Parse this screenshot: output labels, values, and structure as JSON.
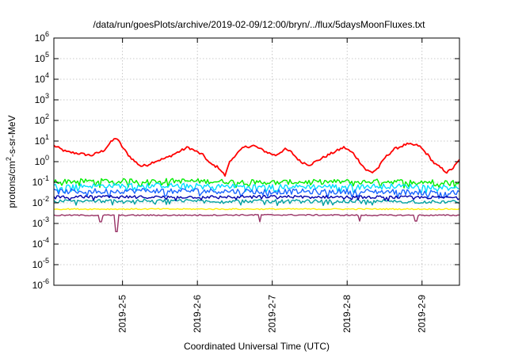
{
  "chart_data": {
    "type": "line",
    "title": "/data/run/goesPlots/archive/2019-02-09/12:00/bryn/../flux/5daysMoonFluxes.txt",
    "xlabel": "Coordinated Universal Time (UTC)",
    "ylabel": "protons/cm2-s-sr-MeV",
    "ylabel_parts": {
      "pre": "protons/cm",
      "sup": "2",
      "post": "-s-sr-MeV"
    },
    "y_scale": "log",
    "xlim": [
      "2019-02-04T02:00",
      "2019-02-09T12:00"
    ],
    "ylim": [
      1e-06,
      1000000.0
    ],
    "grid": true,
    "x_ticks": [
      {
        "date": "2019-02-05T00:00",
        "label": "2019-2-5"
      },
      {
        "date": "2019-02-06T00:00",
        "label": "2019-2-6"
      },
      {
        "date": "2019-02-07T00:00",
        "label": "2019-2-7"
      },
      {
        "date": "2019-02-08T00:00",
        "label": "2019-2-8"
      },
      {
        "date": "2019-02-09T00:00",
        "label": "2019-2-9"
      }
    ],
    "y_ticks": [
      {
        "value": 1e-06,
        "base": "10",
        "exp": "-6"
      },
      {
        "value": 1e-05,
        "base": "10",
        "exp": "-5"
      },
      {
        "value": 0.0001,
        "base": "10",
        "exp": "-4"
      },
      {
        "value": 0.001,
        "base": "10",
        "exp": "-3"
      },
      {
        "value": 0.01,
        "base": "10",
        "exp": "-2"
      },
      {
        "value": 0.1,
        "base": "10",
        "exp": "-1"
      },
      {
        "value": 1,
        "base": "10",
        "exp": "0"
      },
      {
        "value": 10,
        "base": "10",
        "exp": "1"
      },
      {
        "value": 100,
        "base": "10",
        "exp": "2"
      },
      {
        "value": 1000,
        "base": "10",
        "exp": "3"
      },
      {
        "value": 10000,
        "base": "10",
        "exp": "4"
      },
      {
        "value": 100000,
        "base": "10",
        "exp": "5"
      },
      {
        "value": 1000000,
        "base": "10",
        "exp": "6"
      }
    ],
    "series": [
      {
        "color": "#ff0000",
        "points": [
          [
            "2019-02-04T02:00",
            6.0
          ],
          [
            "2019-02-04T06:00",
            3.0
          ],
          [
            "2019-02-04T10:00",
            2.5
          ],
          [
            "2019-02-04T14:00",
            2.0
          ],
          [
            "2019-02-04T18:00",
            3.5
          ],
          [
            "2019-02-04T20:00",
            8.0
          ],
          [
            "2019-02-04T22:00",
            15.0
          ],
          [
            "2019-02-05T00:00",
            5.0
          ],
          [
            "2019-02-05T02:00",
            2.0
          ],
          [
            "2019-02-05T04:00",
            1.0
          ],
          [
            "2019-02-05T06:00",
            0.6
          ],
          [
            "2019-02-05T08:00",
            0.7
          ],
          [
            "2019-02-05T10:00",
            1.0
          ],
          [
            "2019-02-05T14:00",
            1.5
          ],
          [
            "2019-02-05T18:00",
            3.0
          ],
          [
            "2019-02-05T21:00",
            5.0
          ],
          [
            "2019-02-05T23:00",
            3.5
          ],
          [
            "2019-02-06T02:00",
            2.0
          ],
          [
            "2019-02-06T04:00",
            0.8
          ],
          [
            "2019-02-06T07:00",
            0.5
          ],
          [
            "2019-02-06T08:00",
            0.3
          ],
          [
            "2019-02-06T09:00",
            0.2
          ],
          [
            "2019-02-06T10:00",
            0.8
          ],
          [
            "2019-02-06T12:00",
            2.0
          ],
          [
            "2019-02-06T15:00",
            5.0
          ],
          [
            "2019-02-06T18:00",
            6.0
          ],
          [
            "2019-02-06T22:00",
            3.0
          ],
          [
            "2019-02-07T01:00",
            2.0
          ],
          [
            "2019-02-07T04:00",
            4.0
          ],
          [
            "2019-02-07T06:00",
            3.0
          ],
          [
            "2019-02-07T09:00",
            1.0
          ],
          [
            "2019-02-07T12:00",
            0.7
          ],
          [
            "2019-02-07T16:00",
            1.5
          ],
          [
            "2019-02-07T20:00",
            3.0
          ],
          [
            "2019-02-07T23:00",
            5.0
          ],
          [
            "2019-02-08T02:00",
            2.5
          ],
          [
            "2019-02-08T04:00",
            1.0
          ],
          [
            "2019-02-08T06:00",
            0.4
          ],
          [
            "2019-02-08T08:00",
            0.3
          ],
          [
            "2019-02-08T10:00",
            0.5
          ],
          [
            "2019-02-08T12:00",
            1.5
          ],
          [
            "2019-02-08T15:00",
            4.0
          ],
          [
            "2019-02-08T19:00",
            7.0
          ],
          [
            "2019-02-08T23:00",
            6.0
          ],
          [
            "2019-02-09T02:00",
            2.0
          ],
          [
            "2019-02-09T04:00",
            0.8
          ],
          [
            "2019-02-09T06:00",
            0.5
          ],
          [
            "2019-02-09T08:00",
            0.3
          ],
          [
            "2019-02-09T10:00",
            0.5
          ],
          [
            "2019-02-09T12:00",
            1.2
          ]
        ],
        "noise": 0.06
      },
      {
        "color": "#00ee00",
        "points": [
          [
            "2019-02-04T02:00",
            0.11
          ],
          [
            "2019-02-05T12:00",
            0.12
          ],
          [
            "2019-02-07T00:00",
            0.1
          ],
          [
            "2019-02-08T12:00",
            0.11
          ],
          [
            "2019-02-09T12:00",
            0.1
          ]
        ],
        "noise": 0.12
      },
      {
        "color": "#00ddff",
        "points": [
          [
            "2019-02-04T02:00",
            0.065
          ],
          [
            "2019-02-05T12:00",
            0.07
          ],
          [
            "2019-02-07T00:00",
            0.06
          ],
          [
            "2019-02-08T12:00",
            0.065
          ],
          [
            "2019-02-09T12:00",
            0.06
          ]
        ],
        "noise": 0.12
      },
      {
        "color": "#1a66ff",
        "points": [
          [
            "2019-02-04T02:00",
            0.035
          ],
          [
            "2019-02-05T12:00",
            0.04
          ],
          [
            "2019-02-07T00:00",
            0.035
          ],
          [
            "2019-02-08T12:00",
            0.035
          ],
          [
            "2019-02-09T12:00",
            0.03
          ]
        ],
        "noise": 0.13
      },
      {
        "color": "#00a0a0",
        "points": [
          [
            "2019-02-04T02:00",
            0.012
          ],
          [
            "2019-02-05T12:00",
            0.013
          ],
          [
            "2019-02-07T00:00",
            0.012
          ],
          [
            "2019-02-08T12:00",
            0.012
          ],
          [
            "2019-02-09T12:00",
            0.011
          ]
        ],
        "noise": 0.08
      },
      {
        "color": "#0000aa",
        "points": [
          [
            "2019-02-04T02:00",
            0.02
          ],
          [
            "2019-02-05T12:00",
            0.019
          ],
          [
            "2019-02-07T00:00",
            0.02
          ],
          [
            "2019-02-08T12:00",
            0.019
          ],
          [
            "2019-02-09T12:00",
            0.018
          ]
        ],
        "noise": 0.07
      },
      {
        "color": "#ffee00",
        "points": [
          [
            "2019-02-04T02:00",
            0.005
          ],
          [
            "2019-02-05T12:00",
            0.005
          ],
          [
            "2019-02-07T00:00",
            0.005
          ],
          [
            "2019-02-08T12:00",
            0.005
          ],
          [
            "2019-02-09T12:00",
            0.005
          ]
        ],
        "noise": 0.03
      },
      {
        "color": "#993366",
        "points": [
          [
            "2019-02-04T02:00",
            0.0025
          ],
          [
            "2019-02-05T12:00",
            0.0025
          ],
          [
            "2019-02-07T00:00",
            0.0026
          ],
          [
            "2019-02-08T12:00",
            0.0025
          ],
          [
            "2019-02-09T12:00",
            0.0025
          ]
        ],
        "noise": 0.03,
        "dips": [
          {
            "date": "2019-02-04T17:00",
            "value": 0.0012
          },
          {
            "date": "2019-02-04T22:00",
            "value": 0.0004
          },
          {
            "date": "2019-02-06T20:00",
            "value": 0.0012
          },
          {
            "date": "2019-02-08T04:00",
            "value": 0.0013
          },
          {
            "date": "2019-02-08T22:00",
            "value": 0.0013
          }
        ]
      }
    ]
  }
}
